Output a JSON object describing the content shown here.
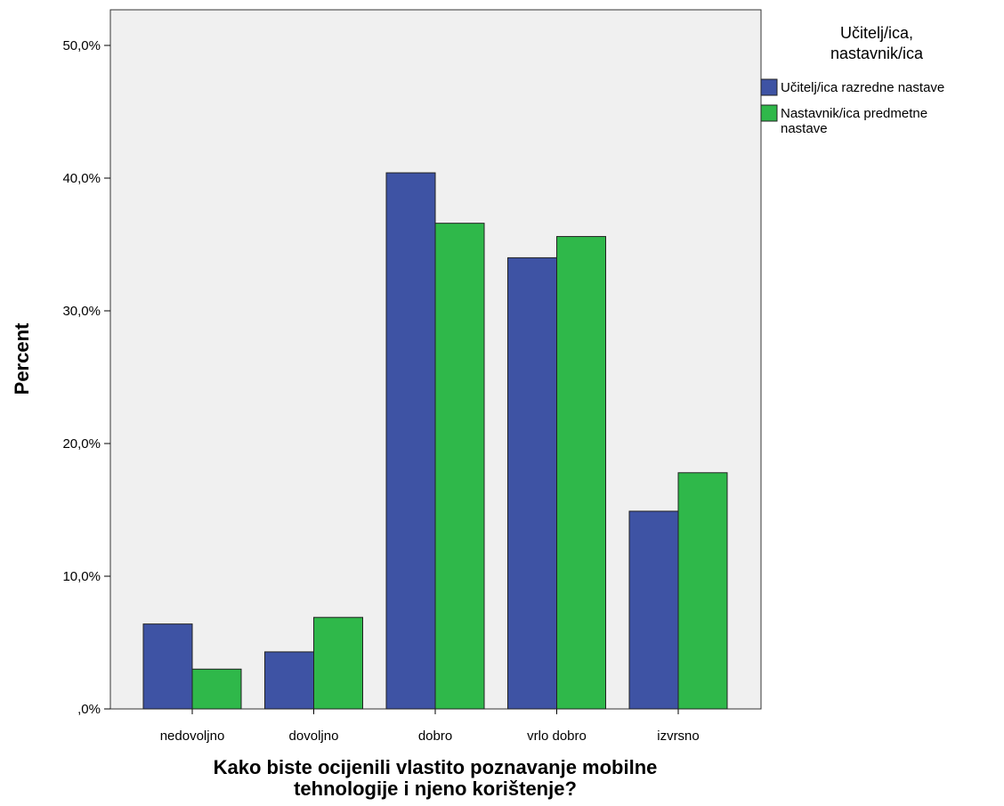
{
  "chart_data": {
    "type": "bar",
    "categories": [
      "nedovoljno",
      "dovoljno",
      "dobro",
      "vrlo dobro",
      "izvrsno"
    ],
    "series": [
      {
        "name": "Učitelj/ica razredne nastave",
        "color": "#3e53a4",
        "values": [
          6.4,
          4.3,
          40.4,
          34.0,
          14.9
        ]
      },
      {
        "name": "Nastavnik/ica predmetne nastave",
        "color": "#2fb84a",
        "values": [
          3.0,
          6.9,
          36.6,
          35.6,
          17.8
        ]
      }
    ],
    "xlabel_lines": [
      "Kako biste ocijenili vlastito poznavanje mobilne",
      "tehnologije i njeno korištenje?"
    ],
    "ylabel": "Percent",
    "ylim": [
      0,
      50
    ],
    "yticks": [
      0,
      10,
      20,
      30,
      40,
      50
    ],
    "ytick_labels": [
      ",0%",
      "10,0%",
      "20,0%",
      "30,0%",
      "40,0%",
      "50,0%"
    ],
    "plot_background": "#f0f0f0",
    "grid": false,
    "legend": {
      "position": "top-right",
      "title_lines": [
        "Učitelj/ica,",
        "nastavnik/ica"
      ],
      "entries": [
        {
          "label_lines": [
            "Učitelj/ica razredne nastave"
          ],
          "color": "#3e53a4"
        },
        {
          "label_lines": [
            "Nastavnik/ica predmetne",
            "nastave"
          ],
          "color": "#2fb84a"
        }
      ]
    }
  }
}
